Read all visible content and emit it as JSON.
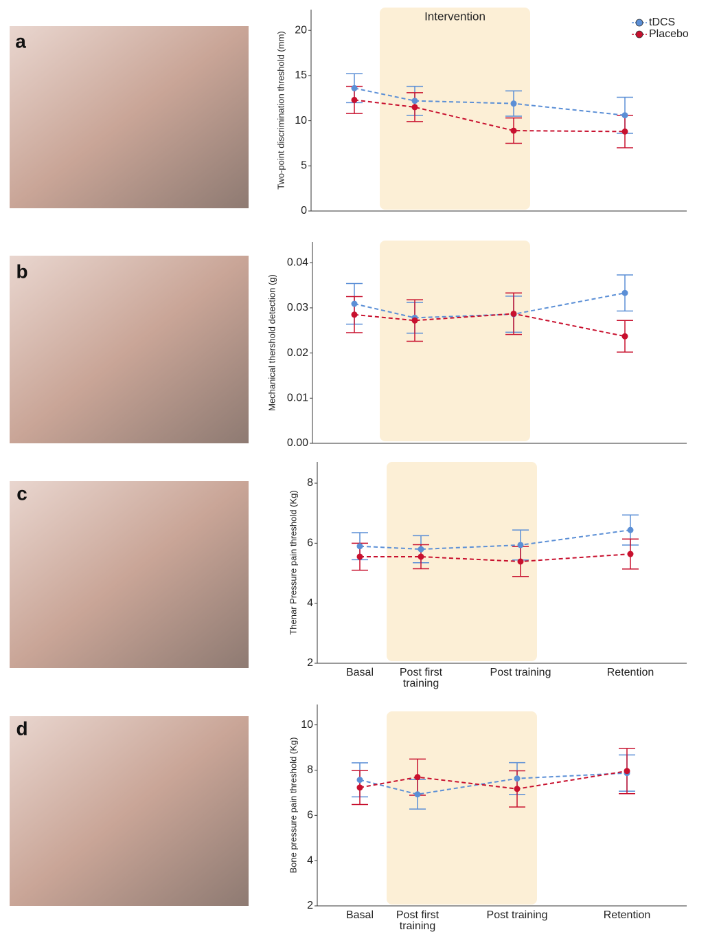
{
  "chart_data": [
    {
      "type": "line",
      "panel_label": "a",
      "annotation": "Intervention",
      "legend": "top-right",
      "y_label": "Two-point discrimination threshold (mm)",
      "categories": [
        null,
        null,
        null,
        null
      ],
      "ylim": [
        0,
        22.3
      ],
      "yticks": [
        0,
        5,
        10,
        15,
        20
      ],
      "series": [
        {
          "name": "tDCS",
          "color": "#5b8fd6",
          "values": [
            13.6,
            12.2,
            11.9,
            10.6
          ],
          "errors": [
            1.6,
            1.6,
            1.4,
            2.0
          ]
        },
        {
          "name": "Placebo",
          "color": "#c8102e",
          "values": [
            12.3,
            11.5,
            8.9,
            8.8
          ],
          "errors": [
            1.5,
            1.6,
            1.4,
            1.8
          ]
        }
      ]
    },
    {
      "type": "line",
      "panel_label": "b",
      "legend": null,
      "y_label": "Mechanical thershold detection (g)",
      "categories": [
        null,
        null,
        null,
        null
      ],
      "ylim": [
        0,
        0.0446
      ],
      "yticks": [
        {
          "value": 0,
          "label": "0.00"
        },
        {
          "value": 0.01,
          "label": "0.01"
        },
        {
          "value": 0.02,
          "label": "0.02"
        },
        {
          "value": 0.03,
          "label": "0.03"
        },
        {
          "value": 0.04,
          "label": "0.04"
        }
      ],
      "series": [
        {
          "name": "tDCS",
          "color": "#5b8fd6",
          "values": [
            0.0309,
            0.0278,
            0.0286,
            0.0333
          ],
          "errors": [
            0.0045,
            0.0034,
            0.004,
            0.004
          ]
        },
        {
          "name": "Placebo",
          "color": "#c8102e",
          "values": [
            0.0285,
            0.0272,
            0.0287,
            0.0237
          ],
          "errors": [
            0.004,
            0.0046,
            0.0046,
            0.0035
          ]
        }
      ]
    },
    {
      "type": "line",
      "panel_label": "c",
      "legend": null,
      "y_label": "Thenar Pressure pain threshold (Kg)",
      "categories": [
        "Basal",
        "Post first training",
        "Post training",
        "Retention"
      ],
      "ylim": [
        2,
        8.71
      ],
      "yticks": [
        2,
        4,
        6,
        8
      ],
      "series": [
        {
          "name": "tDCS",
          "color": "#5b8fd6",
          "values": [
            5.9,
            5.8,
            5.94,
            6.44
          ],
          "errors": [
            0.45,
            0.45,
            0.5,
            0.5
          ]
        },
        {
          "name": "Placebo",
          "color": "#c8102e",
          "values": [
            5.55,
            5.55,
            5.39,
            5.64
          ],
          "errors": [
            0.45,
            0.4,
            0.5,
            0.5
          ]
        }
      ]
    },
    {
      "type": "line",
      "panel_label": "d",
      "legend": null,
      "y_label": "Bone pressure pain threshold (Kg)",
      "categories": [
        "Basal",
        "Post first training",
        "Post training",
        "Retention"
      ],
      "ylim": [
        2,
        10.9
      ],
      "yticks": [
        2,
        4,
        6,
        8,
        10
      ],
      "series": [
        {
          "name": "tDCS",
          "color": "#5b8fd6",
          "values": [
            7.57,
            6.93,
            7.63,
            7.87
          ],
          "errors": [
            0.75,
            0.65,
            0.7,
            0.8
          ]
        },
        {
          "name": "Placebo",
          "color": "#c8102e",
          "values": [
            7.23,
            7.69,
            7.17,
            7.96
          ],
          "errors": [
            0.75,
            0.8,
            0.8,
            1.0
          ]
        }
      ]
    }
  ]
}
